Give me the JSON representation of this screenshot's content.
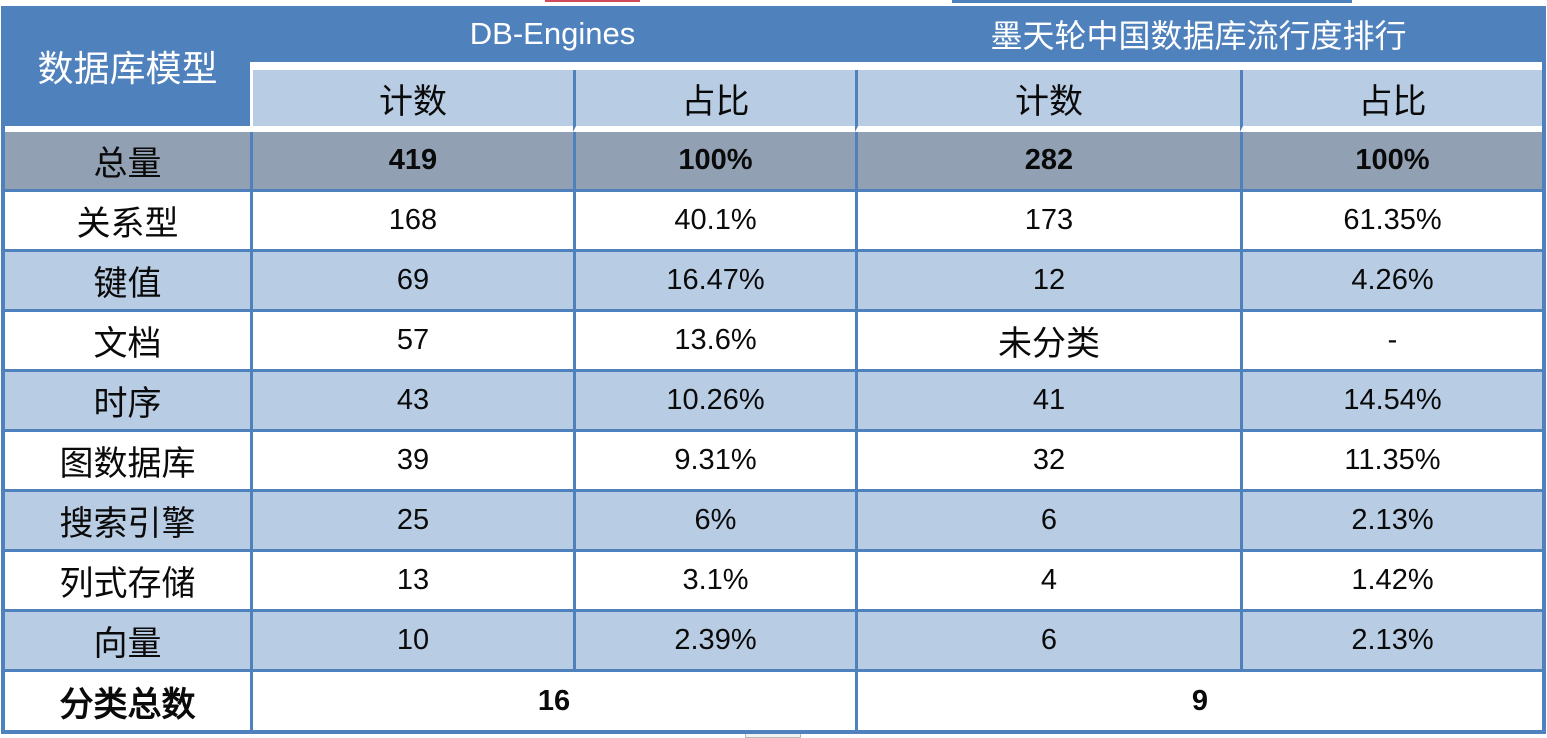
{
  "colors": {
    "header_blue": "#4f81bd",
    "subheader_light_blue": "#b8cce4",
    "total_row_gray": "#92a0b3",
    "grid_border_blue": "#4f81bd",
    "top_artifact_red": "#cf4a5d"
  },
  "table": {
    "corner_header": "数据库模型",
    "groups": [
      {
        "title": "DB-Engines",
        "count_header": "计数",
        "pct_header": "占比"
      },
      {
        "title": "墨天轮中国数据库流行度排行",
        "count_header": "计数",
        "pct_header": "占比"
      }
    ],
    "rows": [
      {
        "label": "总量",
        "de_count": "419",
        "de_pct": "100%",
        "mo_count": "282",
        "mo_pct": "100%"
      },
      {
        "label": "关系型",
        "de_count": "168",
        "de_pct": "40.1%",
        "mo_count": "173",
        "mo_pct": "61.35%"
      },
      {
        "label": "键值",
        "de_count": "69",
        "de_pct": "16.47%",
        "mo_count": "12",
        "mo_pct": "4.26%"
      },
      {
        "label": "文档",
        "de_count": "57",
        "de_pct": "13.6%",
        "mo_count": "未分类",
        "mo_pct": "-"
      },
      {
        "label": "时序",
        "de_count": "43",
        "de_pct": "10.26%",
        "mo_count": "41",
        "mo_pct": "14.54%"
      },
      {
        "label": "图数据库",
        "de_count": "39",
        "de_pct": "9.31%",
        "mo_count": "32",
        "mo_pct": "11.35%"
      },
      {
        "label": "搜索引擎",
        "de_count": "25",
        "de_pct": "6%",
        "mo_count": "6",
        "mo_pct": "2.13%"
      },
      {
        "label": "列式存储",
        "de_count": "13",
        "de_pct": "3.1%",
        "mo_count": "4",
        "mo_pct": "1.42%"
      },
      {
        "label": "向量",
        "de_count": "10",
        "de_pct": "2.39%",
        "mo_count": "6",
        "mo_pct": "2.13%"
      }
    ],
    "footer": {
      "label": "分类总数",
      "de_total": "16",
      "mo_total": "9"
    }
  },
  "chart_data": {
    "type": "table",
    "title": "数据库模型分布：DB-Engines vs 墨天轮中国数据库流行度排行",
    "row_header": "数据库模型",
    "column_groups": [
      "DB-Engines",
      "墨天轮中国数据库流行度排行"
    ],
    "columns": [
      "DB-Engines 计数",
      "DB-Engines 占比",
      "墨天轮 计数",
      "墨天轮 占比"
    ],
    "categories": [
      "总量",
      "关系型",
      "键值",
      "文档",
      "时序",
      "图数据库",
      "搜索引擎",
      "列式存储",
      "向量"
    ],
    "series": [
      {
        "name": "DB-Engines 计数",
        "values": [
          419,
          168,
          69,
          57,
          43,
          39,
          25,
          13,
          10
        ]
      },
      {
        "name": "DB-Engines 占比",
        "values": [
          "100%",
          "40.1%",
          "16.47%",
          "13.6%",
          "10.26%",
          "9.31%",
          "6%",
          "3.1%",
          "2.39%"
        ]
      },
      {
        "name": "墨天轮 计数",
        "values": [
          282,
          173,
          12,
          "未分类",
          41,
          32,
          6,
          4,
          6
        ]
      },
      {
        "name": "墨天轮 占比",
        "values": [
          "100%",
          "61.35%",
          "4.26%",
          "-",
          "14.54%",
          "11.35%",
          "2.13%",
          "1.42%",
          "2.13%"
        ]
      }
    ],
    "footer_totals": {
      "label": "分类总数",
      "DB-Engines": 16,
      "墨天轮": 9
    }
  }
}
